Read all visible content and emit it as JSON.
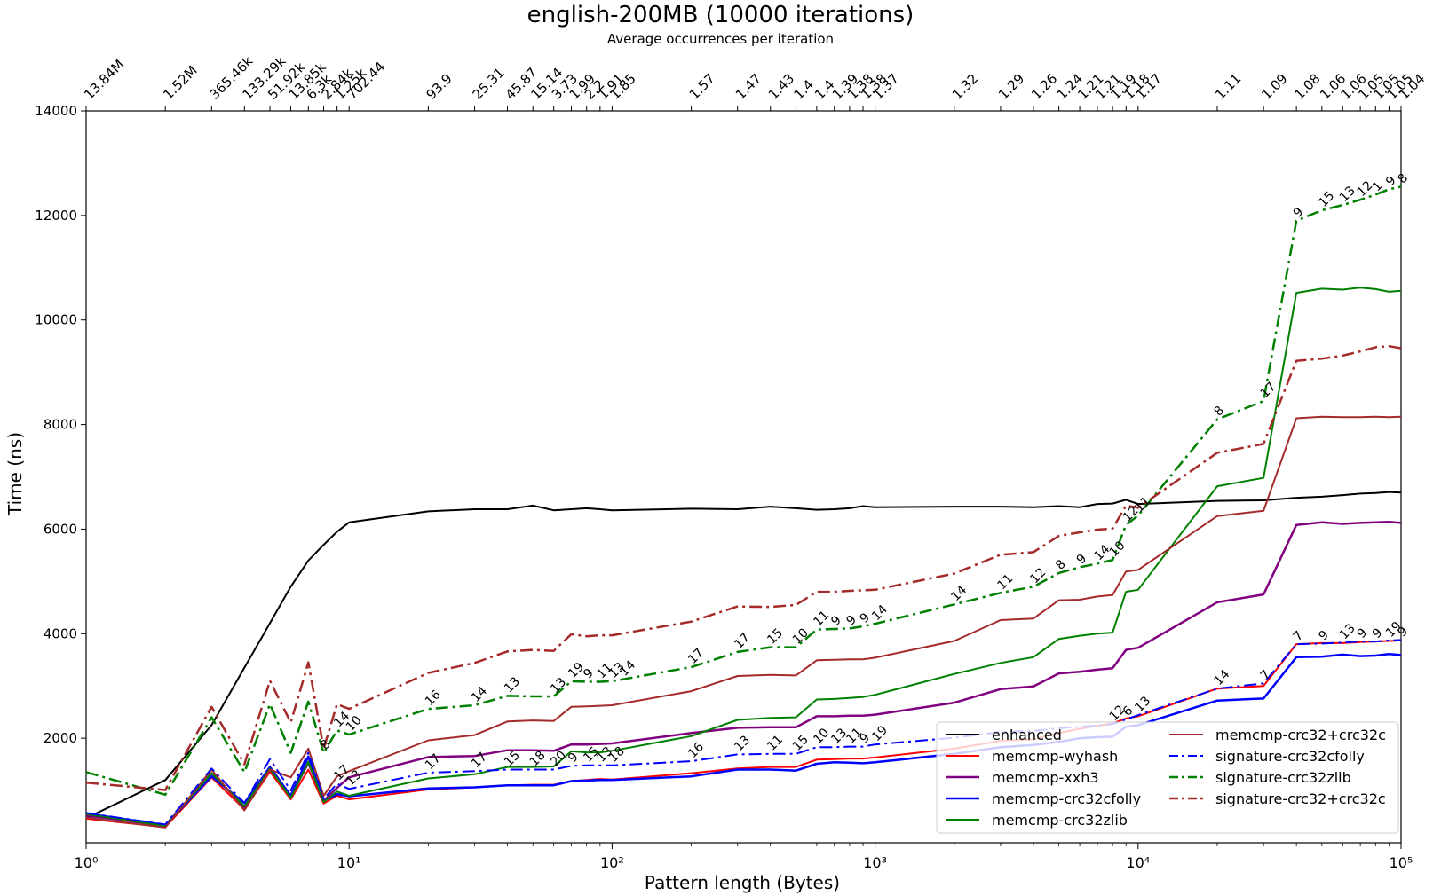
{
  "chart_data": {
    "type": "line",
    "title": "english-200MB (10000 iterations)",
    "subtitle": "Average occurrences per iteration",
    "xlabel": "Pattern length (Bytes)",
    "ylabel": "Time (ns)",
    "xscale": "log",
    "xlim": [
      1,
      100000
    ],
    "ylim": [
      0,
      14000
    ],
    "yticks": [
      2000,
      4000,
      6000,
      8000,
      10000,
      12000,
      14000
    ],
    "xticks": [
      {
        "x": 1,
        "label": "10⁰"
      },
      {
        "x": 10,
        "label": "10¹"
      },
      {
        "x": 100,
        "label": "10²"
      },
      {
        "x": 1000,
        "label": "10³"
      },
      {
        "x": 10000,
        "label": "10⁴"
      },
      {
        "x": 100000,
        "label": "10⁵"
      }
    ],
    "grid": false,
    "legend_position": "lower right",
    "x": [
      1,
      2,
      3,
      4,
      5,
      6,
      7,
      8,
      9,
      10,
      20,
      30,
      40,
      50,
      60,
      70,
      80,
      90,
      100,
      200,
      300,
      400,
      500,
      600,
      700,
      800,
      900,
      1000,
      2000,
      3000,
      4000,
      5000,
      6000,
      7000,
      8000,
      9000,
      10000,
      20000,
      30000,
      40000,
      50000,
      60000,
      70000,
      80000,
      90000,
      100000
    ],
    "top_axis": {
      "label": "Average occurrences per iteration",
      "ticks": [
        {
          "x": 1,
          "label": "13.84M"
        },
        {
          "x": 2,
          "label": "1.52M"
        },
        {
          "x": 3,
          "label": "365.46k"
        },
        {
          "x": 4,
          "label": "133.29k"
        },
        {
          "x": 5,
          "label": "51.92k"
        },
        {
          "x": 6,
          "label": "13.85k"
        },
        {
          "x": 7,
          "label": "6.3k"
        },
        {
          "x": 8,
          "label": "2.84k"
        },
        {
          "x": 9,
          "label": "1.25k"
        },
        {
          "x": 10,
          "label": "702.44"
        },
        {
          "x": 20,
          "label": "93.9"
        },
        {
          "x": 30,
          "label": "25.31"
        },
        {
          "x": 40,
          "label": "45.87"
        },
        {
          "x": 50,
          "label": "15.14"
        },
        {
          "x": 60,
          "label": "3.73"
        },
        {
          "x": 70,
          "label": "1.99"
        },
        {
          "x": 80,
          "label": "2.2"
        },
        {
          "x": 90,
          "label": "1.91"
        },
        {
          "x": 100,
          "label": "1.85"
        },
        {
          "x": 200,
          "label": "1.57"
        },
        {
          "x": 300,
          "label": "1.47"
        },
        {
          "x": 400,
          "label": "1.43"
        },
        {
          "x": 500,
          "label": "1.4"
        },
        {
          "x": 600,
          "label": "1.4"
        },
        {
          "x": 700,
          "label": "1.39"
        },
        {
          "x": 800,
          "label": "1.38"
        },
        {
          "x": 900,
          "label": "1.38"
        },
        {
          "x": 1000,
          "label": "1.37"
        },
        {
          "x": 2000,
          "label": "1.32"
        },
        {
          "x": 3000,
          "label": "1.29"
        },
        {
          "x": 4000,
          "label": "1.26"
        },
        {
          "x": 5000,
          "label": "1.24"
        },
        {
          "x": 6000,
          "label": "1.21"
        },
        {
          "x": 7000,
          "label": "1.21"
        },
        {
          "x": 8000,
          "label": "1.19"
        },
        {
          "x": 9000,
          "label": "1.18"
        },
        {
          "x": 10000,
          "label": "1.17"
        },
        {
          "x": 20000,
          "label": "1.11"
        },
        {
          "x": 30000,
          "label": "1.09"
        },
        {
          "x": 40000,
          "label": "1.08"
        },
        {
          "x": 50000,
          "label": "1.06"
        },
        {
          "x": 60000,
          "label": "1.06"
        },
        {
          "x": 70000,
          "label": "1.05"
        },
        {
          "x": 80000,
          "label": "1.05"
        },
        {
          "x": 90000,
          "label": "1.05"
        },
        {
          "x": 100000,
          "label": "1.04"
        }
      ]
    },
    "series": [
      {
        "name": "enhanced",
        "color": "#000000",
        "dash": "solid",
        "width": 2,
        "values": [
          470,
          1200,
          2250,
          3350,
          4200,
          4900,
          5400,
          5700,
          5950,
          6130,
          6340,
          6380,
          6380,
          6450,
          6360,
          6380,
          6400,
          6380,
          6360,
          6390,
          6380,
          6430,
          6400,
          6370,
          6380,
          6400,
          6440,
          6420,
          6430,
          6430,
          6420,
          6440,
          6420,
          6480,
          6490,
          6560,
          6480,
          6540,
          6550,
          6600,
          6620,
          6650,
          6680,
          6690,
          6710,
          6700
        ]
      },
      {
        "name": "memcmp-wyhash",
        "color": "#ff0000",
        "dash": "solid",
        "width": 2,
        "values": [
          460,
          300,
          1250,
          640,
          1360,
          830,
          1400,
          750,
          900,
          830,
          1020,
          1060,
          1100,
          1110,
          1110,
          1180,
          1200,
          1220,
          1210,
          1330,
          1420,
          1450,
          1450,
          1590,
          1600,
          1610,
          1610,
          1630,
          1800,
          1950,
          1980,
          2100,
          2180,
          2240,
          2280,
          2380,
          2420,
          2950,
          3000,
          3800,
          3820,
          3820,
          3840,
          3850,
          3860,
          3870
        ]
      },
      {
        "name": "memcmp-xxh3",
        "color": "#800080",
        "dash": "solid",
        "width": 2.5,
        "values": [
          520,
          330,
          1330,
          680,
          1420,
          880,
          1530,
          800,
          1050,
          1250,
          1640,
          1660,
          1770,
          1770,
          1760,
          1880,
          1880,
          1890,
          1900,
          2100,
          2200,
          2210,
          2210,
          2420,
          2420,
          2430,
          2430,
          2450,
          2680,
          2940,
          2990,
          3240,
          3270,
          3310,
          3340,
          3690,
          3730,
          4600,
          4750,
          6080,
          6130,
          6100,
          6120,
          6130,
          6140,
          6120
        ]
      },
      {
        "name": "memcmp-crc32cfolly",
        "color": "#0000ff",
        "dash": "solid",
        "width": 2.5,
        "values": [
          560,
          340,
          1270,
          760,
          1450,
          900,
          1650,
          800,
          930,
          890,
          1040,
          1060,
          1100,
          1100,
          1100,
          1180,
          1190,
          1200,
          1200,
          1270,
          1400,
          1400,
          1380,
          1510,
          1540,
          1530,
          1520,
          1540,
          1700,
          1830,
          1870,
          1930,
          2000,
          2020,
          2030,
          2220,
          2250,
          2720,
          2760,
          3550,
          3560,
          3600,
          3570,
          3580,
          3610,
          3590
        ]
      },
      {
        "name": "memcmp-crc32zlib",
        "color": "#008000",
        "dash": "solid",
        "width": 2,
        "values": [
          550,
          320,
          1330,
          700,
          1420,
          860,
          1550,
          780,
          980,
          900,
          1230,
          1310,
          1450,
          1450,
          1460,
          1750,
          1730,
          1730,
          1760,
          2040,
          2350,
          2390,
          2400,
          2740,
          2750,
          2770,
          2790,
          2830,
          3230,
          3440,
          3550,
          3900,
          3960,
          4000,
          4020,
          4800,
          4840,
          6820,
          6980,
          10520,
          10600,
          10580,
          10620,
          10590,
          10540,
          10560
        ]
      },
      {
        "name": "memcmp-crc32+crc32c",
        "color": "#a52a2a",
        "dash": "solid",
        "width": 2,
        "values": [
          480,
          290,
          1400,
          620,
          1400,
          1250,
          1800,
          900,
          1270,
          1370,
          1960,
          2060,
          2320,
          2340,
          2330,
          2600,
          2610,
          2620,
          2630,
          2900,
          3190,
          3210,
          3200,
          3490,
          3500,
          3510,
          3510,
          3540,
          3860,
          4260,
          4290,
          4640,
          4650,
          4710,
          4740,
          5190,
          5220,
          6250,
          6350,
          8120,
          8150,
          8140,
          8140,
          8150,
          8140,
          8150
        ]
      },
      {
        "name": "signature-crc32cfolly",
        "color": "#0000ff",
        "dash": "dashdot",
        "width": 2,
        "values": [
          570,
          350,
          1420,
          760,
          1600,
          1000,
          1720,
          840,
          1130,
          1030,
          1340,
          1370,
          1400,
          1400,
          1400,
          1470,
          1480,
          1480,
          1480,
          1560,
          1690,
          1700,
          1700,
          1830,
          1830,
          1840,
          1840,
          1880,
          2010,
          2120,
          2140,
          2190,
          2220,
          2240,
          2270,
          2360,
          2440,
          2950,
          3050,
          3800,
          3810,
          3830,
          3850,
          3850,
          3870,
          3880
        ]
      },
      {
        "name": "signature-crc32zlib",
        "color": "#008000",
        "dash": "dashdot",
        "width": 2.5,
        "values": [
          1350,
          920,
          2400,
          1350,
          2650,
          1720,
          2700,
          1720,
          2150,
          2070,
          2560,
          2630,
          2810,
          2800,
          2800,
          3090,
          3080,
          3080,
          3090,
          3360,
          3650,
          3740,
          3740,
          4080,
          4090,
          4100,
          4140,
          4190,
          4560,
          4780,
          4900,
          5160,
          5270,
          5340,
          5410,
          6080,
          6260,
          8100,
          8450,
          11900,
          12100,
          12200,
          12300,
          12400,
          12500,
          12550
        ]
      },
      {
        "name": "signature-crc32+crc32c",
        "color": "#a52a2a",
        "dash": "dashdot",
        "width": 2.5,
        "values": [
          1150,
          1010,
          2600,
          1500,
          3100,
          2300,
          3450,
          1800,
          2650,
          2560,
          3250,
          3440,
          3660,
          3690,
          3670,
          3990,
          3950,
          3970,
          3970,
          4230,
          4520,
          4510,
          4550,
          4800,
          4800,
          4820,
          4830,
          4840,
          5150,
          5510,
          5560,
          5870,
          5940,
          5990,
          6010,
          6450,
          6410,
          7460,
          7630,
          9220,
          9260,
          9320,
          9400,
          9480,
          9500,
          9460
        ]
      }
    ],
    "annotations": [
      {
        "series": "signature-crc32zlib",
        "x": 8,
        "label": "8"
      },
      {
        "series": "signature-crc32zlib",
        "x": 9,
        "label": "14"
      },
      {
        "series": "signature-crc32zlib",
        "x": 10,
        "label": "10"
      },
      {
        "series": "signature-crc32zlib",
        "x": 20,
        "label": "16"
      },
      {
        "series": "signature-crc32zlib",
        "x": 30,
        "label": "14"
      },
      {
        "series": "signature-crc32zlib",
        "x": 40,
        "label": "13"
      },
      {
        "series": "signature-crc32zlib",
        "x": 60,
        "label": "13"
      },
      {
        "series": "signature-crc32zlib",
        "x": 70,
        "label": "19"
      },
      {
        "series": "signature-crc32zlib",
        "x": 80,
        "label": "9"
      },
      {
        "series": "signature-crc32zlib",
        "x": 90,
        "label": "11"
      },
      {
        "series": "signature-crc32zlib",
        "x": 100,
        "label": "13"
      },
      {
        "series": "signature-crc32zlib",
        "x": 110,
        "label": "14"
      },
      {
        "series": "signature-crc32zlib",
        "x": 200,
        "label": "17"
      },
      {
        "series": "signature-crc32zlib",
        "x": 300,
        "label": "17"
      },
      {
        "series": "signature-crc32zlib",
        "x": 400,
        "label": "15"
      },
      {
        "series": "signature-crc32zlib",
        "x": 500,
        "label": "10"
      },
      {
        "series": "signature-crc32zlib",
        "x": 600,
        "label": "11"
      },
      {
        "series": "signature-crc32zlib",
        "x": 700,
        "label": "9"
      },
      {
        "series": "signature-crc32zlib",
        "x": 800,
        "label": "9"
      },
      {
        "series": "signature-crc32zlib",
        "x": 900,
        "label": "9"
      },
      {
        "series": "signature-crc32zlib",
        "x": 1000,
        "label": "14"
      },
      {
        "series": "signature-crc32zlib",
        "x": 2000,
        "label": "14"
      },
      {
        "series": "signature-crc32zlib",
        "x": 3000,
        "label": "11"
      },
      {
        "series": "signature-crc32zlib",
        "x": 4000,
        "label": "12"
      },
      {
        "series": "signature-crc32zlib",
        "x": 5000,
        "label": "8"
      },
      {
        "series": "signature-crc32zlib",
        "x": 6000,
        "label": "9"
      },
      {
        "series": "signature-crc32zlib",
        "x": 7000,
        "label": "14"
      },
      {
        "series": "signature-crc32zlib",
        "x": 8000,
        "label": "10"
      },
      {
        "series": "signature-crc32zlib",
        "x": 9000,
        "label": "12"
      },
      {
        "series": "signature-crc32zlib",
        "x": 10000,
        "label": "11"
      },
      {
        "series": "signature-crc32zlib",
        "x": 20000,
        "label": "8"
      },
      {
        "series": "signature-crc32zlib",
        "x": 30000,
        "label": "17"
      },
      {
        "series": "signature-crc32zlib",
        "x": 40000,
        "label": "9"
      },
      {
        "series": "signature-crc32zlib",
        "x": 50000,
        "label": "15"
      },
      {
        "series": "signature-crc32zlib",
        "x": 60000,
        "label": "13"
      },
      {
        "series": "signature-crc32zlib",
        "x": 70000,
        "label": "12"
      },
      {
        "series": "signature-crc32zlib",
        "x": 80000,
        "label": "1"
      },
      {
        "series": "signature-crc32zlib",
        "x": 90000,
        "label": "9"
      },
      {
        "series": "signature-crc32zlib",
        "x": 100000,
        "label": "8"
      },
      {
        "series": "signature-crc32cfolly",
        "x": 9,
        "label": "17"
      },
      {
        "series": "signature-crc32cfolly",
        "x": 10,
        "label": "13"
      },
      {
        "series": "signature-crc32cfolly",
        "x": 20,
        "label": "17"
      },
      {
        "series": "signature-crc32cfolly",
        "x": 30,
        "label": "17"
      },
      {
        "series": "signature-crc32cfolly",
        "x": 40,
        "label": "15"
      },
      {
        "series": "signature-crc32cfolly",
        "x": 50,
        "label": "18"
      },
      {
        "series": "signature-crc32cfolly",
        "x": 60,
        "label": "20"
      },
      {
        "series": "signature-crc32cfolly",
        "x": 70,
        "label": "9"
      },
      {
        "series": "signature-crc32cfolly",
        "x": 80,
        "label": "15"
      },
      {
        "series": "signature-crc32cfolly",
        "x": 90,
        "label": "13"
      },
      {
        "series": "signature-crc32cfolly",
        "x": 100,
        "label": "18"
      },
      {
        "series": "signature-crc32cfolly",
        "x": 200,
        "label": "16"
      },
      {
        "series": "signature-crc32cfolly",
        "x": 300,
        "label": "13"
      },
      {
        "series": "signature-crc32cfolly",
        "x": 400,
        "label": "11"
      },
      {
        "series": "signature-crc32cfolly",
        "x": 500,
        "label": "15"
      },
      {
        "series": "signature-crc32cfolly",
        "x": 600,
        "label": "10"
      },
      {
        "series": "signature-crc32cfolly",
        "x": 700,
        "label": "13"
      },
      {
        "series": "signature-crc32cfolly",
        "x": 800,
        "label": "11"
      },
      {
        "series": "signature-crc32cfolly",
        "x": 900,
        "label": "9"
      },
      {
        "series": "signature-crc32cfolly",
        "x": 1000,
        "label": "19"
      },
      {
        "series": "signature-crc32cfolly",
        "x": 8000,
        "label": "12"
      },
      {
        "series": "signature-crc32cfolly",
        "x": 9000,
        "label": "6"
      },
      {
        "series": "signature-crc32cfolly",
        "x": 10000,
        "label": "13"
      },
      {
        "series": "signature-crc32cfolly",
        "x": 20000,
        "label": "14"
      },
      {
        "series": "signature-crc32cfolly",
        "x": 30000,
        "label": "7"
      },
      {
        "series": "signature-crc32cfolly",
        "x": 40000,
        "label": "7"
      },
      {
        "series": "signature-crc32cfolly",
        "x": 50000,
        "label": "9"
      },
      {
        "series": "signature-crc32cfolly",
        "x": 60000,
        "label": "13"
      },
      {
        "series": "signature-crc32cfolly",
        "x": 70000,
        "label": "9"
      },
      {
        "series": "signature-crc32cfolly",
        "x": 80000,
        "label": "9"
      },
      {
        "series": "signature-crc32cfolly",
        "x": 90000,
        "label": "19"
      },
      {
        "series": "signature-crc32cfolly",
        "x": 100000,
        "label": "9"
      }
    ]
  }
}
